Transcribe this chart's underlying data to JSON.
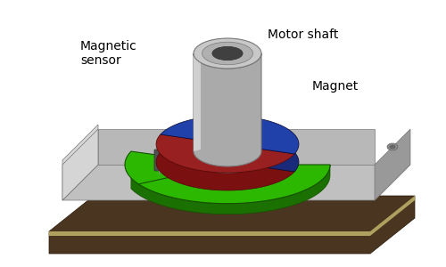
{
  "background_color": "#ffffff",
  "labels": {
    "magnetic_sensor": "Magnetic\nsensor",
    "motor_shaft": "Motor shaft",
    "magnet": "Magnet"
  },
  "colors": {
    "green_pcb_top": "#2db800",
    "green_pcb_side": "#1a7000",
    "green_pcb_dark": "#145000",
    "red_magnet_side": "#7a1010",
    "red_magnet_top": "#992020",
    "blue_magnet_side": "#1a2a7a",
    "blue_magnet_top": "#2040aa",
    "shaft_light": "#d0d0d0",
    "shaft_mid": "#aaaaaa",
    "shaft_dark": "#787878",
    "shaft_hole": "#404040",
    "base_top": "#c0c0c0",
    "base_left": "#d8d8d8",
    "base_right": "#909090",
    "base_front": "#b0b0b0",
    "base_edge": "#787878",
    "bottom_dark": "#4a3520",
    "bottom_mid": "#6a5030",
    "bottom_edge": "#b0a060",
    "chip_body": "#505050",
    "chip_dark": "#303030",
    "pillar_light": "#c8c8c8",
    "pillar_dark": "#888888",
    "label_color": "#000000"
  },
  "figsize": [
    5.0,
    3.0
  ],
  "dpi": 100
}
